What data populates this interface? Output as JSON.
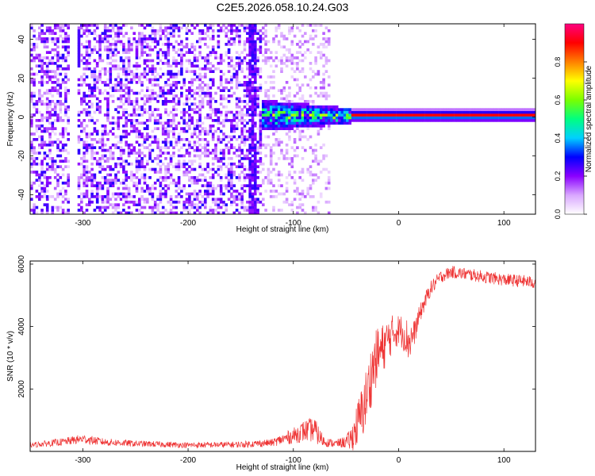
{
  "figure": {
    "title": "C2E5.2026.058.10.24.G03"
  },
  "chart_data": [
    {
      "type": "heatmap",
      "xlabel": "Height of straight line (km)",
      "ylabel": "Frequency (Hz)",
      "xlim": [
        -350,
        130
      ],
      "ylim": [
        -50,
        48
      ],
      "x_ticks": [
        -300,
        -200,
        -100,
        0,
        100
      ],
      "y_ticks": [
        -40,
        -20,
        0,
        20,
        40
      ],
      "colorbar": {
        "label": "Normalized spectral amplitude",
        "range": [
          0,
          1
        ],
        "ticks": [
          0.0,
          0.2,
          0.4,
          0.6,
          0.8
        ],
        "tick_labels": [
          "0.0",
          "0.2",
          "0.4",
          "0.6",
          "0.8"
        ],
        "colors": [
          "#ffffff",
          "#d9a7ff",
          "#8a00ff",
          "#0000ff",
          "#00d0ff",
          "#00ff80",
          "#7aff00",
          "#ffff00",
          "#ff8000",
          "#ff0000",
          "#ff0080"
        ]
      },
      "regions": [
        {
          "x_from": -350,
          "x_to": -130,
          "description": "broadband noise, low amplitude",
          "amplitude": 0.15
        },
        {
          "x_from": -130,
          "x_to": -45,
          "description": "signal emerging near 0 Hz, freq range -8 to 6 Hz",
          "amplitude": 0.5
        },
        {
          "x_from": -45,
          "x_to": 130,
          "description": "strong carrier tone at 0 Hz",
          "amplitude": 0.9
        }
      ]
    },
    {
      "type": "line",
      "xlabel": "Height of straight line (km)",
      "ylabel": "SNR (10 * v/v)",
      "xlim": [
        -350,
        130
      ],
      "ylim": [
        0,
        6100
      ],
      "x_ticks": [
        -300,
        -200,
        -100,
        0,
        100
      ],
      "y_ticks": [
        2000,
        4000,
        6000
      ],
      "series": [
        {
          "name": "SNR",
          "color": "#ee3333",
          "x": [
            -350,
            -320,
            -300,
            -280,
            -250,
            -200,
            -150,
            -120,
            -100,
            -90,
            -80,
            -75,
            -70,
            -60,
            -50,
            -45,
            -40,
            -35,
            -30,
            -25,
            -20,
            -15,
            -10,
            -5,
            0,
            5,
            10,
            15,
            20,
            30,
            40,
            50,
            60,
            80,
            100,
            120,
            130
          ],
          "y": [
            200,
            300,
            400,
            300,
            250,
            200,
            220,
            280,
            500,
            650,
            700,
            450,
            300,
            250,
            300,
            400,
            800,
            1200,
            1800,
            2600,
            3100,
            3300,
            3600,
            3800,
            3900,
            3800,
            3500,
            3800,
            4400,
            5200,
            5600,
            5750,
            5700,
            5600,
            5500,
            5450,
            5400
          ],
          "noise": [
            80,
            120,
            150,
            120,
            100,
            90,
            100,
            120,
            250,
            350,
            400,
            300,
            150,
            120,
            200,
            400,
            700,
            900,
            1000,
            1000,
            900,
            800,
            700,
            600,
            500,
            600,
            700,
            400,
            300,
            250,
            200,
            200,
            200,
            200,
            200,
            200,
            200
          ]
        }
      ]
    }
  ]
}
